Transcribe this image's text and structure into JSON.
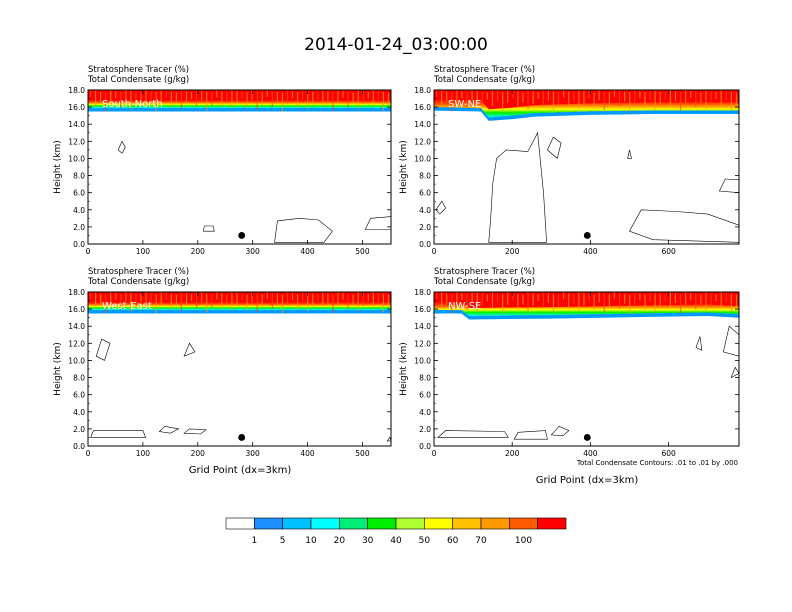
{
  "title": "2014-01-24_03:00:00",
  "panel_header": {
    "line1": "Stratosphere Tracer   (%)",
    "line2": "Total Condensate   (g/kg)"
  },
  "ylabel": "Height (km)",
  "xlabel": "Grid Point (dx=3km)",
  "contour_note": "Total Condensate Contours: .01 to .01 by .000",
  "colors": {
    "red": "#ff0000",
    "orange_red": "#ff4a00",
    "orange": "#ff9900",
    "gold": "#ffcc00",
    "yellow": "#ffff00",
    "lime": "#99ff33",
    "green": "#00e600",
    "sea_green": "#00ff99",
    "cyan": "#00ffff",
    "sky": "#0099ff",
    "blue": "#3366ff"
  },
  "colorbar": {
    "labels": [
      "1",
      "5",
      "10",
      "20",
      "30",
      "40",
      "50",
      "60",
      "70",
      "100"
    ],
    "colors": [
      "#ffffff",
      "#1e90ff",
      "#00bfff",
      "#00ffff",
      "#00ee76",
      "#00ee00",
      "#adff2f",
      "#ffff00",
      "#ffc000",
      "#ff9900",
      "#ff5a00",
      "#ff0000"
    ]
  },
  "chart_data": [
    {
      "type": "heatmap",
      "panel_label": "South-North",
      "ylim": [
        0,
        18
      ],
      "yticks": [
        "0.0",
        "2.0",
        "4.0",
        "6.0",
        "8.0",
        "10.0",
        "12.0",
        "14.0",
        "16.0",
        "18.0"
      ],
      "xlim": [
        0,
        552
      ],
      "xticks": [
        {
          "v": 0,
          "label": "0"
        },
        {
          "v": 100,
          "label": "100"
        },
        {
          "v": 200,
          "label": "200"
        },
        {
          "v": 300,
          "label": "300"
        },
        {
          "v": 400,
          "label": "400"
        },
        {
          "v": 500,
          "label": "500"
        }
      ],
      "marker": {
        "x": 280,
        "y": 1.0
      },
      "tropopause": [
        [
          0,
          15.9
        ],
        [
          100,
          15.9
        ],
        [
          200,
          15.9
        ],
        [
          300,
          15.9
        ],
        [
          400,
          15.9
        ],
        [
          552,
          15.9
        ]
      ],
      "contours": [
        [
          [
            340,
            0.2
          ],
          [
            345,
            2.7
          ],
          [
            385,
            3.0
          ],
          [
            420,
            2.8
          ],
          [
            445,
            1.5
          ],
          [
            430,
            0.2
          ]
        ],
        [
          [
            505,
            1.7
          ],
          [
            515,
            3.0
          ],
          [
            552,
            3.2
          ],
          [
            552,
            1.7
          ]
        ],
        [
          [
            55,
            11.0
          ],
          [
            62,
            12.0
          ],
          [
            68,
            11.3
          ],
          [
            62,
            10.6
          ]
        ],
        [
          [
            210,
            1.5
          ],
          [
            212,
            2.1
          ],
          [
            228,
            2.1
          ],
          [
            230,
            1.5
          ]
        ]
      ]
    },
    {
      "type": "heatmap",
      "panel_label": "SW-NE",
      "ylim": [
        0,
        18
      ],
      "yticks": [
        "0.0",
        "2.0",
        "4.0",
        "6.0",
        "8.0",
        "10.0",
        "12.0",
        "14.0",
        "16.0",
        "18.0"
      ],
      "xlim": [
        0,
        780
      ],
      "xticks": [
        {
          "v": 0,
          "label": "0"
        },
        {
          "v": 200,
          "label": "200"
        },
        {
          "v": 400,
          "label": "400"
        },
        {
          "v": 600,
          "label": "600"
        }
      ],
      "marker": {
        "x": 392,
        "y": 1.0
      },
      "tropopause": [
        [
          0,
          16.0
        ],
        [
          120,
          15.9
        ],
        [
          140,
          14.8
        ],
        [
          200,
          15.0
        ],
        [
          260,
          15.3
        ],
        [
          400,
          15.5
        ],
        [
          550,
          15.6
        ],
        [
          780,
          15.6
        ]
      ],
      "contours": [
        [
          [
            140,
            0.2
          ],
          [
            145,
            3.0
          ],
          [
            150,
            7.0
          ],
          [
            160,
            10.0
          ],
          [
            185,
            11.0
          ],
          [
            240,
            10.8
          ],
          [
            265,
            13.0
          ],
          [
            280,
            6.0
          ],
          [
            288,
            0.2
          ]
        ],
        [
          [
            290,
            11.0
          ],
          [
            305,
            12.5
          ],
          [
            325,
            11.8
          ],
          [
            315,
            10.0
          ]
        ],
        [
          [
            500,
            1.5
          ],
          [
            530,
            4.0
          ],
          [
            620,
            3.8
          ],
          [
            700,
            3.5
          ],
          [
            780,
            2.2
          ],
          [
            780,
            0.2
          ],
          [
            560,
            0.5
          ]
        ],
        [
          [
            730,
            6.2
          ],
          [
            745,
            7.6
          ],
          [
            780,
            7.5
          ],
          [
            780,
            6.0
          ]
        ],
        [
          [
            5,
            4.0
          ],
          [
            20,
            5.0
          ],
          [
            30,
            4.2
          ],
          [
            15,
            3.5
          ]
        ],
        [
          [
            495,
            10.0
          ],
          [
            500,
            11.0
          ],
          [
            505,
            10.0
          ]
        ]
      ]
    },
    {
      "type": "heatmap",
      "panel_label": "West-East",
      "ylim": [
        0,
        18
      ],
      "yticks": [
        "0.0",
        "2.0",
        "4.0",
        "6.0",
        "8.0",
        "10.0",
        "12.0",
        "14.0",
        "16.0",
        "18.0"
      ],
      "xlim": [
        0,
        552
      ],
      "xticks": [
        {
          "v": 0,
          "label": "0"
        },
        {
          "v": 100,
          "label": "100"
        },
        {
          "v": 200,
          "label": "200"
        },
        {
          "v": 300,
          "label": "300"
        },
        {
          "v": 400,
          "label": "400"
        },
        {
          "v": 500,
          "label": "500"
        }
      ],
      "marker": {
        "x": 280,
        "y": 1.0
      },
      "tropopause": [
        [
          0,
          15.9
        ],
        [
          552,
          15.9
        ]
      ],
      "contours": [
        [
          [
            5,
            1.0
          ],
          [
            10,
            1.8
          ],
          [
            100,
            1.8
          ],
          [
            105,
            1.0
          ]
        ],
        [
          [
            130,
            1.7
          ],
          [
            140,
            2.3
          ],
          [
            165,
            2.0
          ],
          [
            150,
            1.5
          ]
        ],
        [
          [
            175,
            1.5
          ],
          [
            185,
            2.0
          ],
          [
            215,
            1.9
          ],
          [
            205,
            1.4
          ]
        ],
        [
          [
            15,
            10.5
          ],
          [
            25,
            12.5
          ],
          [
            40,
            12.0
          ],
          [
            30,
            10.0
          ]
        ],
        [
          [
            175,
            10.5
          ],
          [
            185,
            12.0
          ],
          [
            195,
            11.0
          ]
        ],
        [
          [
            545,
            0.6
          ],
          [
            550,
            1.0
          ],
          [
            552,
            0.6
          ]
        ]
      ]
    },
    {
      "type": "heatmap",
      "panel_label": "NW-SE",
      "ylim": [
        0,
        18
      ],
      "yticks": [
        "0.0",
        "2.0",
        "4.0",
        "6.0",
        "8.0",
        "10.0",
        "12.0",
        "14.0",
        "16.0",
        "18.0"
      ],
      "xlim": [
        0,
        780
      ],
      "xticks": [
        {
          "v": 0,
          "label": "0"
        },
        {
          "v": 200,
          "label": "200"
        },
        {
          "v": 400,
          "label": "400"
        },
        {
          "v": 600,
          "label": "600"
        }
      ],
      "marker": {
        "x": 392,
        "y": 1.0
      },
      "tropopause": [
        [
          0,
          15.9
        ],
        [
          70,
          15.9
        ],
        [
          90,
          15.2
        ],
        [
          300,
          15.3
        ],
        [
          550,
          15.5
        ],
        [
          700,
          15.6
        ],
        [
          780,
          15.4
        ]
      ],
      "contours": [
        [
          [
            10,
            1.0
          ],
          [
            30,
            1.8
          ],
          [
            180,
            1.7
          ],
          [
            190,
            1.0
          ]
        ],
        [
          [
            205,
            0.8
          ],
          [
            215,
            1.6
          ],
          [
            285,
            1.8
          ],
          [
            290,
            0.8
          ]
        ],
        [
          [
            300,
            1.3
          ],
          [
            320,
            2.3
          ],
          [
            345,
            1.8
          ],
          [
            330,
            1.2
          ]
        ],
        [
          [
            740,
            11.0
          ],
          [
            755,
            14.0
          ],
          [
            780,
            13.0
          ],
          [
            780,
            10.5
          ]
        ],
        [
          [
            670,
            11.5
          ],
          [
            680,
            12.8
          ],
          [
            685,
            11.2
          ]
        ],
        [
          [
            760,
            8.0
          ],
          [
            770,
            9.2
          ],
          [
            780,
            8.5
          ]
        ]
      ]
    }
  ]
}
